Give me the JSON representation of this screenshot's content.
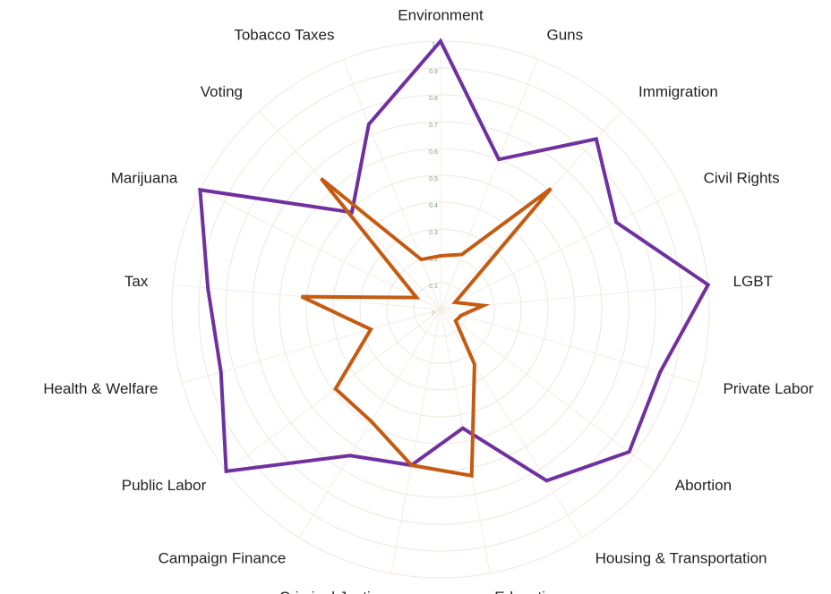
{
  "chart_data": {
    "type": "radar",
    "categories": [
      "Environment",
      "Guns",
      "Immigration",
      "Civil Rights",
      "LGBT",
      "Private Labor",
      "Abortion",
      "Housing & Transportation",
      "Education",
      "Criminal Justice",
      "Campaign Finance",
      "Public Labor",
      "Health & Welfare",
      "Tax",
      "Marijuana",
      "Voting",
      "Tobacco Taxes"
    ],
    "series": [
      {
        "color": "#7030a0",
        "values": [
          1.0,
          0.6,
          0.86,
          0.73,
          1.0,
          0.85,
          0.88,
          0.75,
          0.45,
          0.59,
          0.64,
          1.0,
          0.85,
          0.87,
          1.0,
          0.49,
          0.74
        ]
      },
      {
        "color": "#c55a11",
        "values": [
          0.2,
          0.22,
          0.61,
          0.06,
          0.16,
          0.08,
          0.07,
          0.24,
          0.63,
          0.59,
          0.49,
          0.49,
          0.27,
          0.52,
          0.1,
          0.66,
          0.2
        ]
      }
    ],
    "ylim": [
      0,
      1
    ],
    "yticks": [
      0,
      0.1,
      0.2,
      0.3,
      0.4,
      0.5,
      0.6,
      0.7,
      0.8,
      0.9,
      1
    ],
    "grid": true
  }
}
